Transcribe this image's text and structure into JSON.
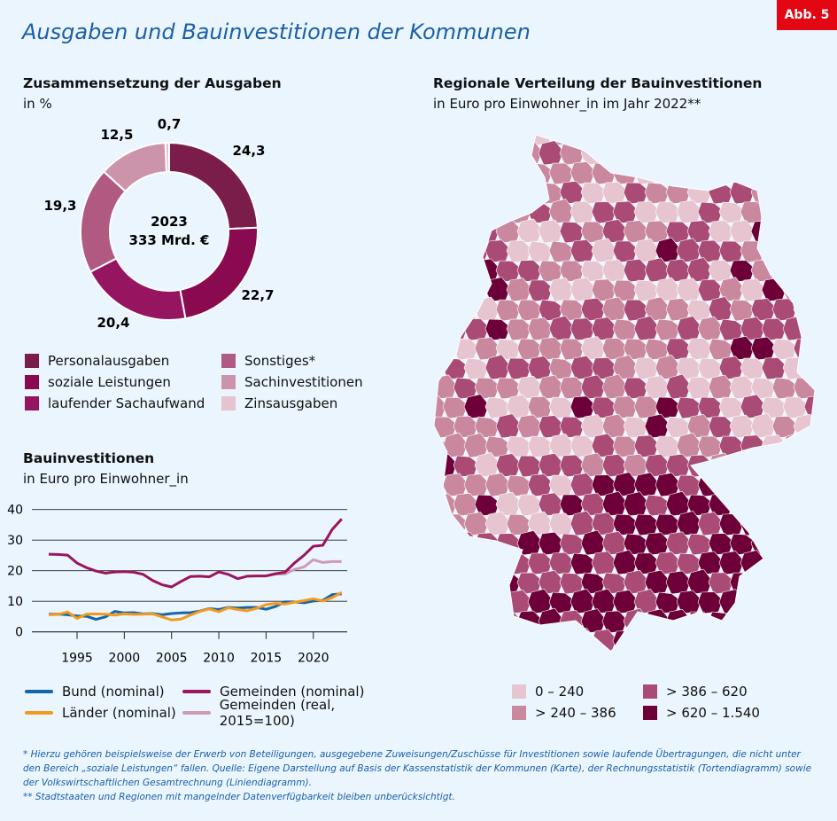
{
  "title": "Ausgaben und Bauinvestitionen der Kommunen",
  "badge": "Abb. 5",
  "donut": {
    "heading": "Zusammensetzung der Ausgaben",
    "unit": "in %",
    "center_year": "2023",
    "center_total": "333 Mrd. €"
  },
  "map": {
    "heading": "Regionale Verteilung der Bauinvestitionen",
    "unit": "in Euro pro Einwohner_in im Jahr 2022**",
    "legend": [
      {
        "label": "0 – 240",
        "color": "#e6c5d0"
      },
      {
        "label": "> 240 – 386",
        "color": "#c9889e"
      },
      {
        "label": "> 386 – 620",
        "color": "#a94b75"
      },
      {
        "label": "> 620 – 1.540",
        "color": "#6e0039"
      }
    ]
  },
  "line": {
    "heading": "Bauinvestitionen",
    "unit": "in Euro pro Einwohner_in"
  },
  "footnote": {
    "line1": "* Hierzu gehören beispielsweise der Erwerb von Beteiligungen, ausgegebene Zuweisungen/Zuschüsse für Investitionen sowie laufende Übertragungen, die nicht unter den Bereich „soziale Leistungen“ fallen. Quelle: Eigene Darstellung auf Basis der Kassenstatistik der Kommunen (Karte), der Rechnungsstatistik (Tortendiagramm) sowie der Volkswirtschaftlichen Gesamtrechnung (Liniendiagramm).",
    "line2": "** Stadtstaaten und Regionen mit mangelnder Datenverfügbarkeit bleiben unberücksichtigt."
  },
  "chart_data": [
    {
      "type": "pie",
      "title": "Zusammensetzung der Ausgaben",
      "unit": "in %",
      "donut": true,
      "categories": [
        "Personalausgaben",
        "soziale Leistungen",
        "laufender Sachaufwand",
        "Sonstiges*",
        "Sachinvestitionen",
        "Zinsausgaben"
      ],
      "values": [
        24.3,
        22.7,
        20.4,
        19.3,
        12.5,
        0.7
      ],
      "labels": [
        "24,3",
        "22,7",
        "20,4",
        "19,3",
        "12,5",
        "0,7"
      ],
      "colors": [
        "#7a1d4a",
        "#8a0a50",
        "#951560",
        "#b05a82",
        "#cc94aa",
        "#e5c3cf"
      ]
    },
    {
      "type": "line",
      "title": "Bauinvestitionen",
      "ylabel": "in Euro pro Einwohner_in",
      "ylim": [
        0,
        40
      ],
      "yticks": [
        "0",
        "10",
        "20",
        "30",
        "40"
      ],
      "xticks": [
        "1995",
        "2000",
        "2005",
        "2010",
        "2015",
        "2020"
      ],
      "grid": true,
      "x": [
        1992,
        1993,
        1994,
        1995,
        1996,
        1997,
        1998,
        1999,
        2000,
        2001,
        2002,
        2003,
        2004,
        2005,
        2006,
        2007,
        2008,
        2009,
        2010,
        2011,
        2012,
        2013,
        2014,
        2015,
        2016,
        2017,
        2018,
        2019,
        2020,
        2021,
        2022,
        2023
      ],
      "series": [
        {
          "name": "Bund (nominal)",
          "color": "#1566a8",
          "values": [
            5.8,
            5.8,
            5.6,
            5.2,
            5.1,
            4.1,
            4.9,
            6.7,
            6.2,
            6.3,
            5.9,
            6.0,
            5.6,
            6.0,
            6.2,
            6.3,
            6.8,
            7.6,
            7.3,
            8.0,
            7.8,
            8.0,
            8.0,
            7.4,
            8.3,
            9.8,
            9.8,
            9.5,
            10.1,
            10.3,
            12.2,
            12.4
          ]
        },
        {
          "name": "Länder (nominal)",
          "color": "#f39a1e",
          "values": [
            5.6,
            5.7,
            6.5,
            4.4,
            5.8,
            5.9,
            5.8,
            5.5,
            5.9,
            5.7,
            5.8,
            5.9,
            4.9,
            3.9,
            4.2,
            5.5,
            6.7,
            7.5,
            6.6,
            7.9,
            7.3,
            6.9,
            7.7,
            8.9,
            9.3,
            9.1,
            9.7,
            10.2,
            10.8,
            10.1,
            11.2,
            12.9
          ]
        },
        {
          "name": "Gemeinden (nominal)",
          "color": "#9a1460",
          "values": [
            25.4,
            25.3,
            25.1,
            22.5,
            21.0,
            19.9,
            19.2,
            19.6,
            19.7,
            19.5,
            18.8,
            16.8,
            15.4,
            14.7,
            16.5,
            18.1,
            18.2,
            18.0,
            19.6,
            18.8,
            17.4,
            18.2,
            18.3,
            18.3,
            19.0,
            19.5,
            22.5,
            25.0,
            28.0,
            28.3,
            33.5,
            36.9
          ]
        },
        {
          "name": "Gemeinden (real, 2015=100)",
          "color": "#cf9bb3",
          "values": [
            null,
            null,
            null,
            null,
            null,
            null,
            null,
            null,
            null,
            null,
            null,
            null,
            null,
            null,
            null,
            null,
            null,
            null,
            null,
            null,
            null,
            null,
            null,
            18.3,
            18.9,
            18.9,
            20.4,
            21.2,
            23.6,
            22.7,
            23.0,
            23.0
          ]
        }
      ]
    }
  ]
}
